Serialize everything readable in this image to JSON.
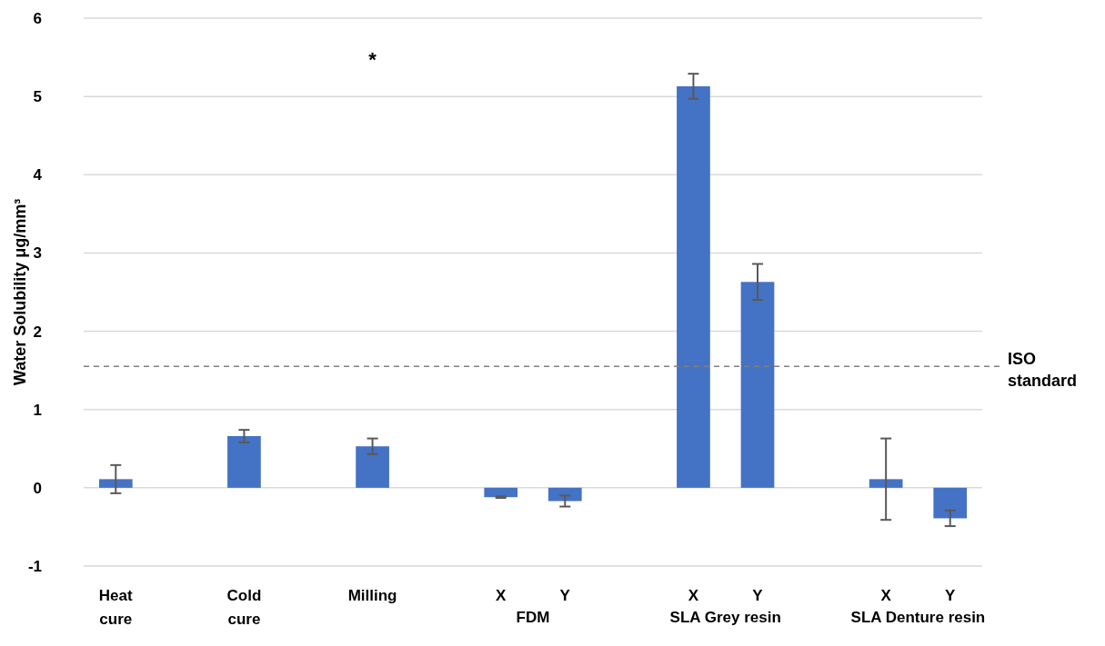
{
  "chart_data": {
    "type": "bar",
    "categories": [
      "Heat cure",
      null,
      "Cold cure",
      null,
      "Milling",
      null,
      "X",
      "Y",
      null,
      "X",
      "Y",
      null,
      "X",
      "Y"
    ],
    "values": [
      0.11,
      null,
      0.66,
      null,
      0.53,
      null,
      -0.12,
      -0.17,
      null,
      5.13,
      2.63,
      null,
      0.11,
      -0.39
    ],
    "errors": [
      0.18,
      null,
      0.08,
      null,
      0.1,
      null,
      0.01,
      0.07,
      null,
      0.16,
      0.23,
      null,
      0.52,
      0.1
    ],
    "color": "#4472c4",
    "ylabel": "Water Solubility  μg/mm³",
    "ylim": [
      -1,
      6
    ],
    "yticks": [
      -1,
      0,
      1,
      2,
      3,
      4,
      5,
      6
    ],
    "grid": "y",
    "ref_lines": [
      {
        "axis": "y",
        "value": 1.55,
        "label": "ISO standard",
        "color": "#808080",
        "line_style": "dashed"
      }
    ],
    "annotations": [
      "FDM",
      "SLA Grey resin",
      "SLA Denture resin",
      "*"
    ]
  }
}
